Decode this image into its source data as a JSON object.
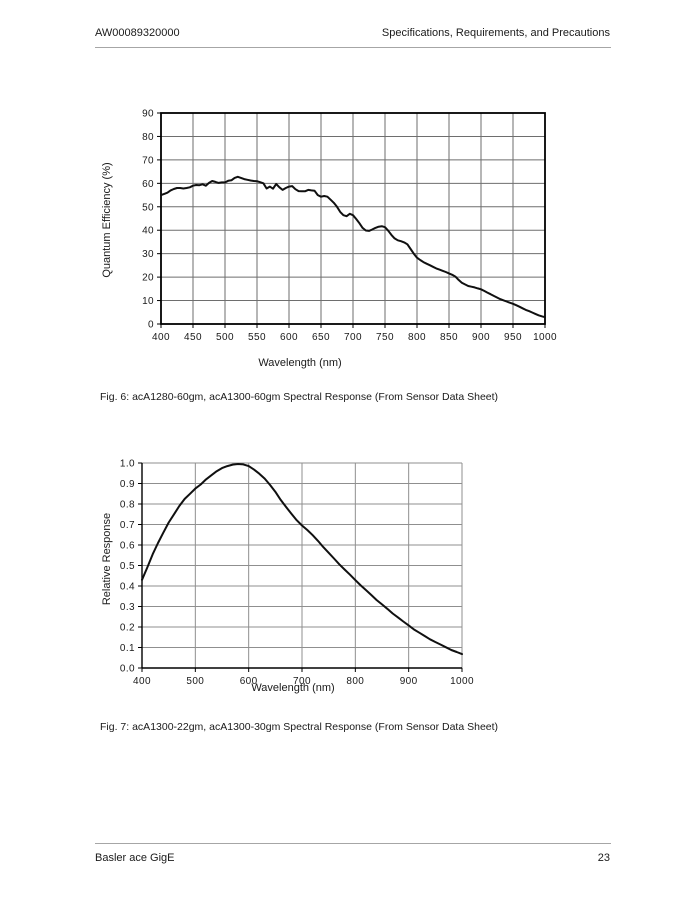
{
  "header": {
    "doc_number": "AW00089320000",
    "section_title": "Specifications, Requirements, and Precautions"
  },
  "footer": {
    "product": "Basler ace GigE",
    "page_number": "23"
  },
  "figures": [
    {
      "caption": "Fig. 6: acA1280-60gm, acA1300-60gm Spectral Response (From Sensor Data Sheet)"
    },
    {
      "caption": "Fig. 7: acA1300-22gm, acA1300-30gm Spectral Response (From Sensor Data Sheet)"
    }
  ],
  "colors": {
    "background": "#ffffff",
    "text": "#1a1a1a",
    "rule": "#a6a6a6",
    "axis": "#000000",
    "curve": "#101010",
    "grid_fig6": "#6e6e6e",
    "grid_fig7": "#8f8f8f"
  },
  "chart_data": [
    {
      "type": "line",
      "title": "",
      "xlabel": "Wavelength (nm)",
      "ylabel": "Quantum Efficiency (%)",
      "xlim": [
        400,
        1000
      ],
      "ylim": [
        0,
        90
      ],
      "grid": true,
      "legend": "none",
      "frame": "box",
      "grid_color": "#6e6e6e",
      "curve_color": "#101010",
      "xticks": [
        400,
        450,
        500,
        550,
        600,
        650,
        700,
        750,
        800,
        850,
        900,
        950,
        1000
      ],
      "xtick_labels": [
        "400",
        "450",
        "500",
        "550",
        "600",
        "650",
        "700",
        "750",
        "800",
        "850",
        "900",
        "950",
        "1000"
      ],
      "yticks": [
        0,
        10,
        20,
        30,
        40,
        50,
        60,
        70,
        80,
        90
      ],
      "ytick_labels": [
        "0",
        "10",
        "20",
        "30",
        "40",
        "50",
        "60",
        "70",
        "80",
        "90"
      ],
      "series": [
        {
          "name": "acA1280-60gm / acA1300-60gm quantum efficiency",
          "x": [
            400,
            405,
            410,
            415,
            420,
            425,
            430,
            435,
            440,
            445,
            450,
            455,
            460,
            465,
            470,
            475,
            480,
            485,
            490,
            495,
            500,
            505,
            510,
            515,
            520,
            525,
            530,
            535,
            540,
            545,
            550,
            555,
            560,
            565,
            570,
            575,
            580,
            585,
            590,
            595,
            600,
            605,
            610,
            615,
            620,
            625,
            630,
            635,
            640,
            645,
            650,
            655,
            660,
            665,
            670,
            675,
            680,
            685,
            690,
            695,
            700,
            705,
            710,
            715,
            720,
            725,
            730,
            735,
            740,
            745,
            750,
            755,
            760,
            765,
            770,
            775,
            780,
            785,
            790,
            795,
            800,
            805,
            810,
            815,
            820,
            825,
            830,
            835,
            840,
            845,
            850,
            855,
            860,
            865,
            870,
            875,
            880,
            885,
            890,
            895,
            900,
            905,
            910,
            915,
            920,
            925,
            930,
            935,
            940,
            945,
            950,
            955,
            960,
            965,
            970,
            975,
            980,
            985,
            990,
            995,
            1000
          ],
          "y": [
            55.0,
            55.5,
            56.0,
            57.0,
            57.6,
            58.0,
            58.0,
            57.8,
            58.0,
            58.3,
            59.0,
            59.3,
            59.2,
            59.6,
            59.0,
            60.2,
            61.0,
            60.6,
            60.2,
            60.4,
            60.4,
            61.1,
            61.3,
            62.3,
            62.8,
            62.3,
            61.8,
            61.5,
            61.2,
            61.0,
            60.9,
            60.5,
            60.0,
            57.8,
            58.6,
            57.7,
            59.7,
            58.3,
            57.2,
            58.0,
            58.6,
            58.8,
            57.5,
            56.7,
            56.6,
            56.6,
            57.2,
            57.0,
            56.8,
            55.0,
            54.3,
            54.6,
            54.3,
            53.0,
            51.7,
            50.0,
            47.8,
            46.4,
            46.0,
            47.0,
            46.4,
            44.8,
            43.0,
            41.0,
            39.9,
            39.7,
            40.3,
            41.0,
            41.5,
            41.7,
            41.3,
            39.8,
            38.0,
            36.5,
            35.7,
            35.3,
            34.8,
            34.0,
            32.0,
            30.0,
            28.3,
            27.3,
            26.4,
            25.7,
            25.1,
            24.4,
            23.7,
            23.2,
            22.7,
            22.2,
            21.6,
            21.0,
            20.2,
            18.8,
            17.6,
            16.9,
            16.2,
            15.9,
            15.6,
            15.2,
            14.8,
            14.1,
            13.4,
            12.7,
            12.0,
            11.3,
            10.6,
            10.1,
            9.6,
            9.1,
            8.6,
            8.0,
            7.4,
            6.7,
            6.0,
            5.5,
            4.9,
            4.3,
            3.7,
            3.3,
            2.9
          ]
        }
      ]
    },
    {
      "type": "line",
      "title": "",
      "xlabel": "Wavelength (nm)",
      "ylabel": "Relative Response",
      "xlim": [
        400,
        1000
      ],
      "ylim": [
        0,
        1.0
      ],
      "grid": true,
      "legend": "none",
      "frame": "axes",
      "grid_color": "#8f8f8f",
      "curve_color": "#101010",
      "xticks": [
        400,
        500,
        600,
        700,
        800,
        900,
        1000
      ],
      "xtick_labels": [
        "400",
        "500",
        "600",
        "700",
        "800",
        "900",
        "1000"
      ],
      "yticks": [
        0,
        0.1,
        0.2,
        0.3,
        0.4,
        0.5,
        0.6,
        0.7,
        0.8,
        0.9,
        1.0
      ],
      "ytick_labels": [
        "0.0",
        "0.1",
        "0.2",
        "0.3",
        "0.4",
        "0.5",
        "0.6",
        "0.7",
        "0.8",
        "0.9",
        "1.0"
      ],
      "series": [
        {
          "name": "acA1300-22gm / acA1300-30gm relative response",
          "x": [
            400,
            410,
            420,
            430,
            440,
            450,
            460,
            470,
            480,
            490,
            500,
            510,
            520,
            530,
            540,
            550,
            560,
            570,
            580,
            590,
            600,
            610,
            620,
            630,
            640,
            650,
            660,
            670,
            680,
            690,
            700,
            710,
            720,
            730,
            740,
            750,
            760,
            770,
            780,
            790,
            800,
            810,
            820,
            830,
            840,
            850,
            860,
            870,
            880,
            890,
            900,
            910,
            920,
            930,
            940,
            950,
            960,
            970,
            980,
            990,
            1000
          ],
          "y": [
            0.43,
            0.49,
            0.555,
            0.61,
            0.66,
            0.71,
            0.75,
            0.79,
            0.825,
            0.85,
            0.875,
            0.895,
            0.92,
            0.94,
            0.96,
            0.975,
            0.985,
            0.992,
            0.995,
            0.993,
            0.985,
            0.968,
            0.948,
            0.924,
            0.893,
            0.86,
            0.82,
            0.786,
            0.753,
            0.721,
            0.695,
            0.673,
            0.648,
            0.62,
            0.59,
            0.562,
            0.534,
            0.506,
            0.48,
            0.455,
            0.429,
            0.403,
            0.38,
            0.356,
            0.331,
            0.31,
            0.289,
            0.266,
            0.247,
            0.227,
            0.208,
            0.188,
            0.172,
            0.156,
            0.14,
            0.127,
            0.114,
            0.101,
            0.088,
            0.078,
            0.068
          ]
        }
      ]
    }
  ]
}
